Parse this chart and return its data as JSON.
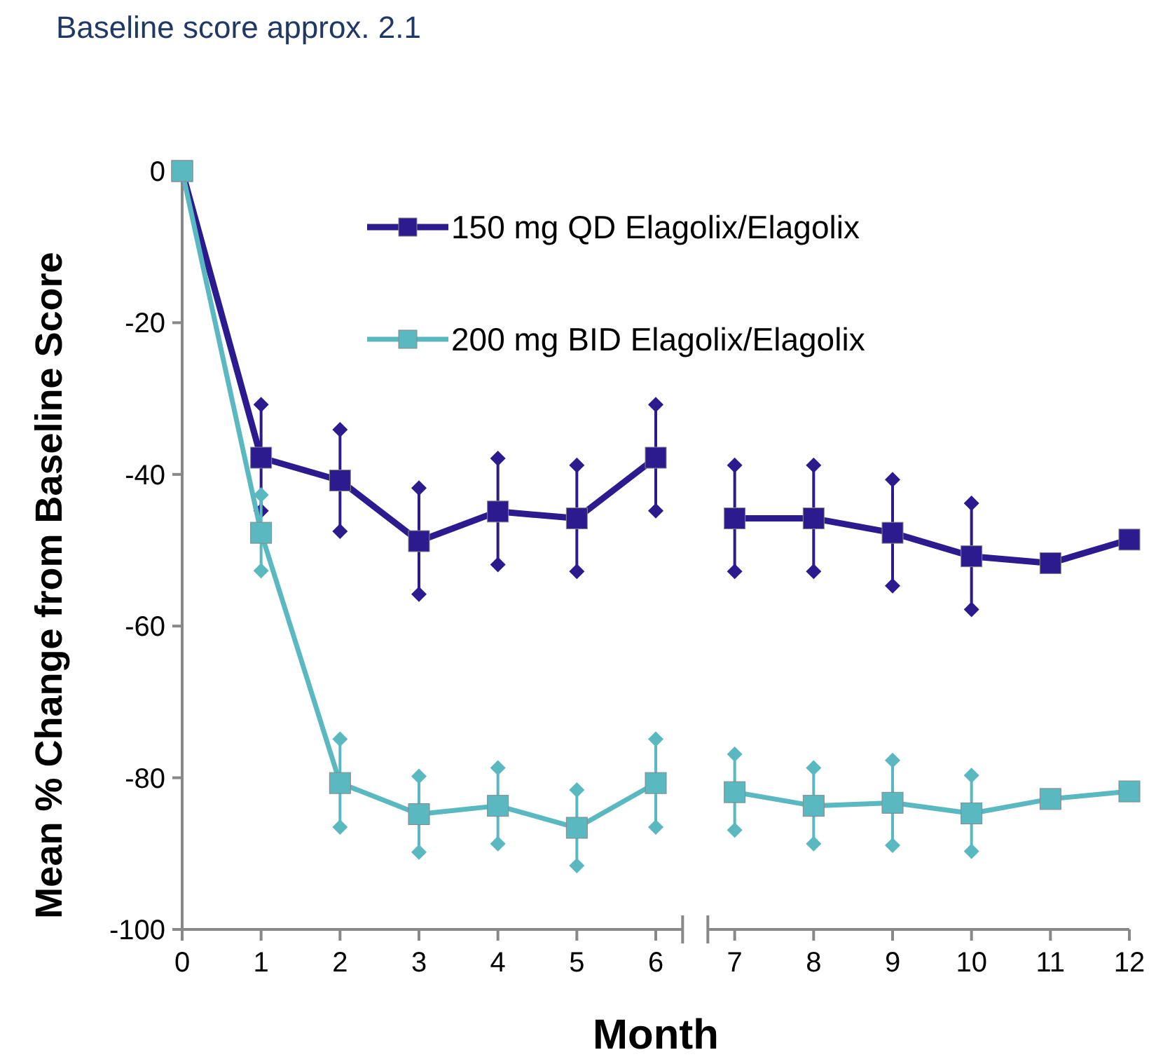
{
  "chart_data": {
    "type": "line",
    "title": "Baseline score approx. 2.1",
    "xlabel": "Month",
    "ylabel": "Mean % Change from Baseline Score",
    "x": [
      0,
      1,
      2,
      3,
      4,
      5,
      6,
      6.5,
      7,
      8,
      9,
      10,
      11,
      12
    ],
    "xlim": [
      0,
      12
    ],
    "xticks": [
      0,
      1,
      2,
      3,
      4,
      5,
      6,
      7,
      8,
      9,
      10,
      11,
      12
    ],
    "ylim": [
      -100,
      0
    ],
    "yticks": [
      -100,
      -80,
      -60,
      -40,
      -20,
      0
    ],
    "series": [
      {
        "name": "150 mg QD Elagolix/Elagolix",
        "color": "#2b1b8e",
        "values": [
          0,
          -37.8,
          -40.8,
          -48.8,
          -44.9,
          -45.8,
          -37.8,
          null,
          -45.8,
          -45.8,
          -47.7,
          -50.8,
          -51.7,
          -48.6
        ],
        "errors": [
          null,
          7,
          6.7,
          7,
          7,
          7,
          7,
          null,
          7,
          7,
          7,
          7,
          null,
          null
        ]
      },
      {
        "name": "200 mg BID Elagolix/Elagolix",
        "color": "#5ab8c0",
        "values": [
          0,
          -47.7,
          -80.7,
          -84.8,
          -83.7,
          -86.6,
          -80.7,
          null,
          -81.9,
          -83.7,
          -83.3,
          -84.7,
          -82.8,
          -81.8
        ],
        "errors": [
          null,
          5,
          5.8,
          5,
          5,
          5,
          5.8,
          null,
          5,
          5,
          5.6,
          5,
          null,
          null
        ]
      }
    ],
    "legend": "top right",
    "marker": "square",
    "line_style": "solid",
    "grid": false
  }
}
